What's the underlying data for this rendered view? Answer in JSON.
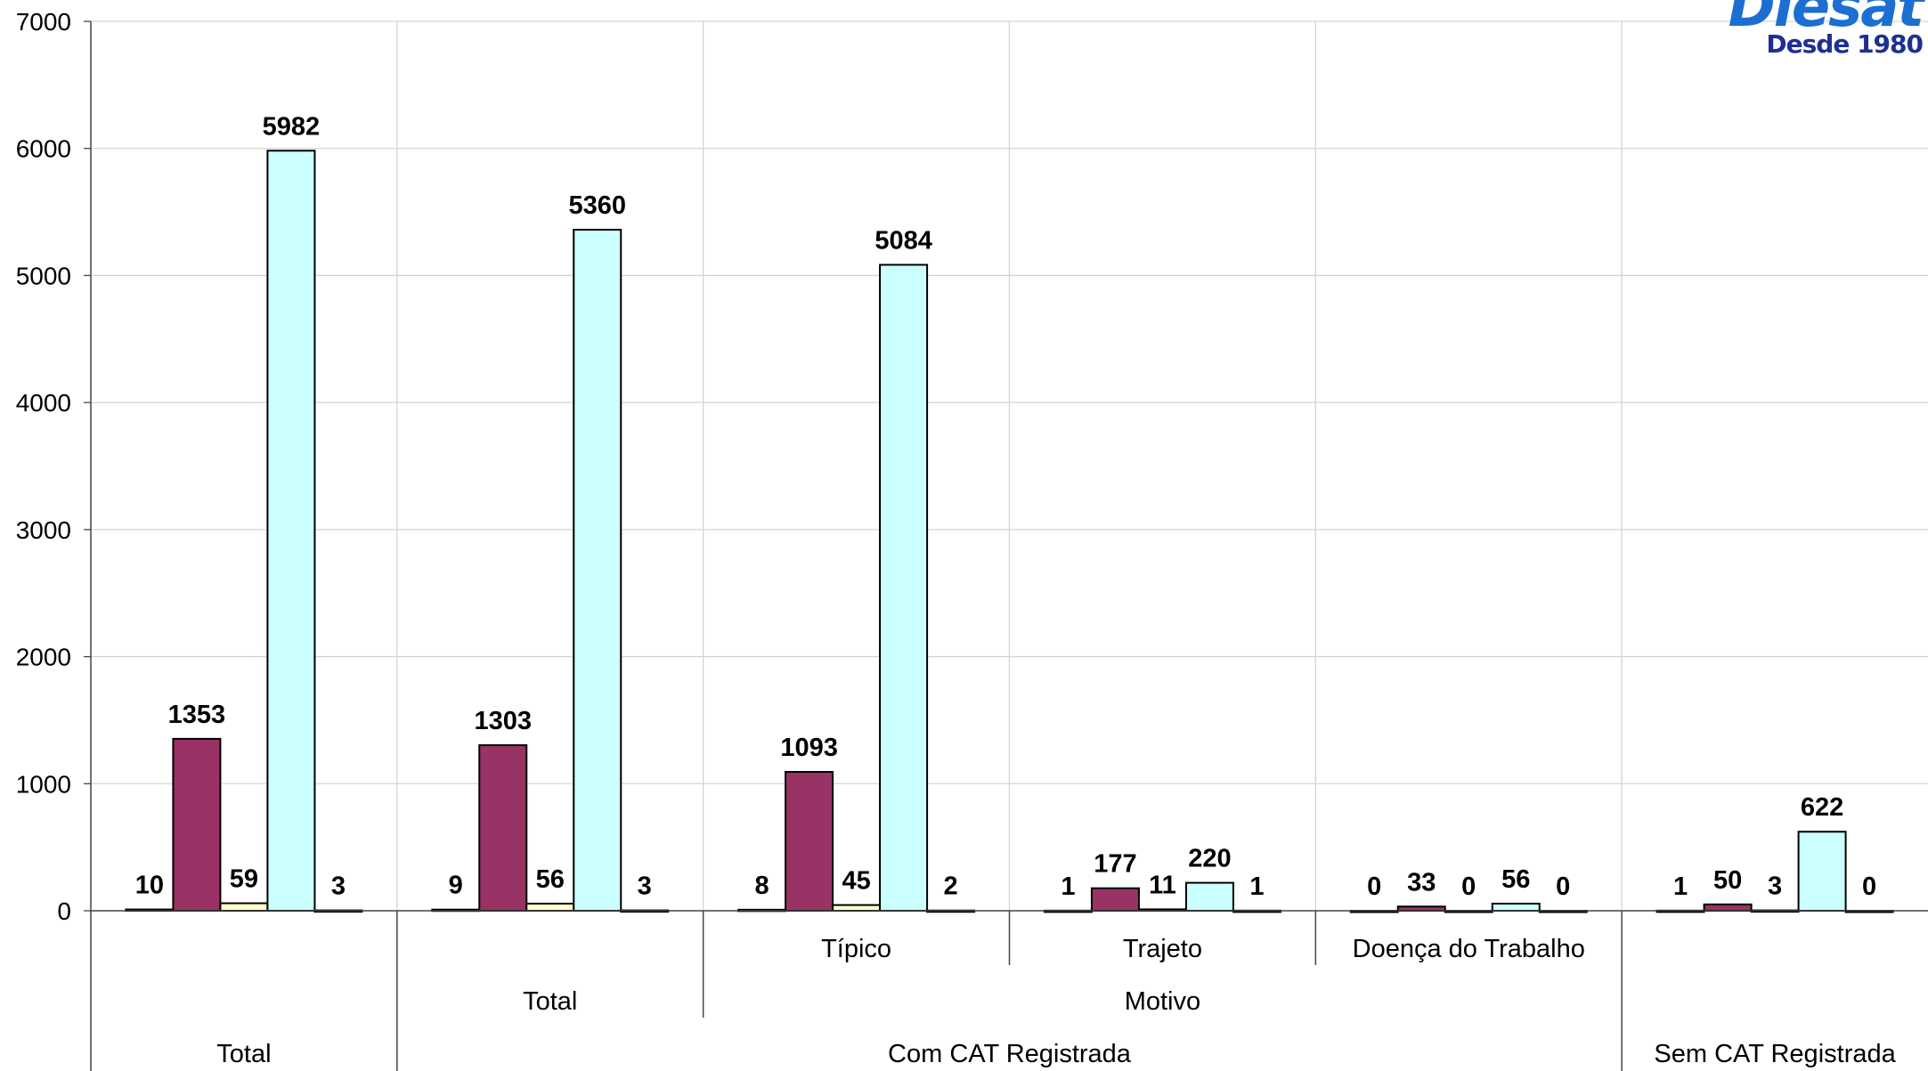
{
  "logo": {
    "word": "Diesat",
    "subtitle": "Desde 1980"
  },
  "chart_data": {
    "type": "bar",
    "title": "",
    "xlabel": "",
    "ylabel": "",
    "ylim": [
      0,
      7000
    ],
    "yticks": [
      0,
      1000,
      2000,
      3000,
      4000,
      5000,
      6000,
      7000
    ],
    "grid": true,
    "legend": "none",
    "series_colors": [
      "#000000",
      "#993366",
      "#ffffcc",
      "#ccffff",
      "#000000"
    ],
    "categories": [
      "Total",
      "Típico",
      "Trajeto",
      "Doença do Trabalho",
      "Total",
      "Total"
    ],
    "category_levels": [
      [
        "Total",
        "",
        "",
        "",
        "Total",
        "Total"
      ],
      [
        "",
        "Típico",
        "Trajeto",
        "Doença do Trabalho",
        "",
        ""
      ],
      [
        "",
        "Motivo",
        "Motivo",
        "Motivo",
        "Total",
        ""
      ]
    ],
    "axis_labels": {
      "level1": [
        "Típico",
        "Trajeto",
        "Doença do Trabalho"
      ],
      "level2": [
        "Total",
        "Motivo"
      ],
      "level3": [
        "Total",
        "Com CAT Registrada",
        "Sem CAT Registrada"
      ]
    },
    "series": [
      {
        "values": [
          10,
          9,
          8,
          1,
          0,
          1
        ]
      },
      {
        "values": [
          1353,
          1303,
          1093,
          177,
          33,
          50
        ]
      },
      {
        "values": [
          59,
          56,
          45,
          11,
          0,
          3
        ]
      },
      {
        "values": [
          5982,
          5360,
          5084,
          220,
          56,
          622
        ]
      },
      {
        "values": [
          3,
          3,
          2,
          1,
          0,
          0
        ]
      }
    ]
  }
}
